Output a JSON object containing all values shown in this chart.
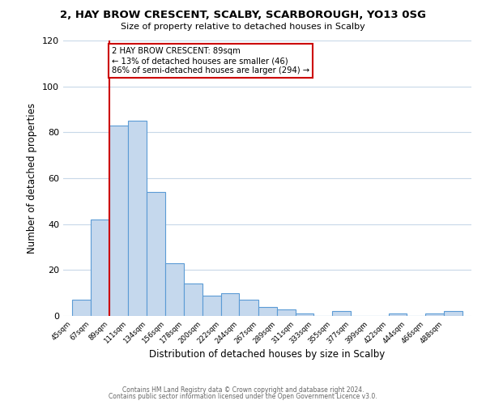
{
  "title": "2, HAY BROW CRESCENT, SCALBY, SCARBOROUGH, YO13 0SG",
  "subtitle": "Size of property relative to detached houses in Scalby",
  "xlabel": "Distribution of detached houses by size in Scalby",
  "ylabel": "Number of detached properties",
  "bin_edges": [
    45,
    67,
    89,
    111,
    134,
    156,
    178,
    200,
    222,
    244,
    267,
    289,
    311,
    333,
    355,
    377,
    399,
    422,
    444,
    466,
    488
  ],
  "bar_heights": [
    7,
    42,
    83,
    85,
    54,
    23,
    14,
    9,
    10,
    7,
    4,
    3,
    1,
    0,
    2,
    0,
    0,
    1,
    0,
    1,
    2
  ],
  "bar_color": "#c5d8ed",
  "bar_edge_color": "#5b9bd5",
  "vline_x": 89,
  "vline_color": "#cc0000",
  "annotation_text": "2 HAY BROW CRESCENT: 89sqm\n← 13% of detached houses are smaller (46)\n86% of semi-detached houses are larger (294) →",
  "annotation_box_edge_color": "#cc0000",
  "annotation_box_face_color": "#ffffff",
  "ylim": [
    0,
    120
  ],
  "yticks": [
    0,
    20,
    40,
    60,
    80,
    100,
    120
  ],
  "tick_labels": [
    "45sqm",
    "67sqm",
    "89sqm",
    "111sqm",
    "134sqm",
    "156sqm",
    "178sqm",
    "200sqm",
    "222sqm",
    "244sqm",
    "267sqm",
    "289sqm",
    "311sqm",
    "333sqm",
    "355sqm",
    "377sqm",
    "399sqm",
    "422sqm",
    "444sqm",
    "466sqm",
    "488sqm"
  ],
  "footer_line1": "Contains HM Land Registry data © Crown copyright and database right 2024.",
  "footer_line2": "Contains public sector information licensed under the Open Government Licence v3.0.",
  "background_color": "#ffffff",
  "grid_color": "#c8d8e8"
}
